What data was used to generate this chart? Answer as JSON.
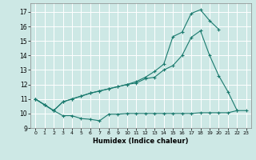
{
  "title": "",
  "xlabel": "Humidex (Indice chaleur)",
  "ylabel": "",
  "bg_color": "#cde8e5",
  "grid_color": "#ffffff",
  "line_color": "#1a7a6e",
  "xlim": [
    -0.5,
    23.5
  ],
  "ylim": [
    9,
    17.6
  ],
  "xticks": [
    0,
    1,
    2,
    3,
    4,
    5,
    6,
    7,
    8,
    9,
    10,
    11,
    12,
    13,
    14,
    15,
    16,
    17,
    18,
    19,
    20,
    21,
    22,
    23
  ],
  "yticks": [
    9,
    10,
    11,
    12,
    13,
    14,
    15,
    16,
    17
  ],
  "series1_x": [
    0,
    1,
    2,
    3,
    4,
    5,
    6,
    7,
    8,
    9,
    10,
    11,
    12,
    13,
    14,
    15,
    16,
    17,
    18,
    19,
    20,
    21,
    22,
    23
  ],
  "series1_y": [
    11.0,
    10.6,
    10.2,
    9.85,
    9.85,
    9.65,
    9.6,
    9.5,
    9.95,
    9.95,
    10.0,
    10.0,
    10.0,
    10.0,
    10.0,
    10.0,
    10.0,
    10.0,
    10.05,
    10.05,
    10.05,
    10.05,
    10.2,
    10.2
  ],
  "series2_x": [
    0,
    1,
    2,
    3,
    4,
    5,
    6,
    7,
    8,
    9,
    10,
    11,
    12,
    13,
    14,
    15,
    16,
    17,
    18,
    19,
    20,
    21,
    22,
    23
  ],
  "series2_y": [
    11.0,
    10.6,
    10.2,
    10.8,
    11.0,
    11.2,
    11.4,
    11.55,
    11.7,
    11.85,
    12.0,
    12.1,
    12.4,
    12.5,
    13.0,
    13.3,
    14.0,
    15.25,
    15.7,
    14.0,
    12.6,
    11.5,
    10.2,
    null
  ],
  "series3_x": [
    0,
    1,
    2,
    3,
    4,
    5,
    6,
    7,
    8,
    9,
    10,
    11,
    12,
    13,
    14,
    15,
    16,
    17,
    18,
    19,
    20,
    21,
    22,
    23
  ],
  "series3_y": [
    11.0,
    10.6,
    10.2,
    10.8,
    11.0,
    11.2,
    11.4,
    11.55,
    11.7,
    11.85,
    12.0,
    12.2,
    12.5,
    12.9,
    13.4,
    15.3,
    15.6,
    16.9,
    17.15,
    16.4,
    15.8,
    null,
    null,
    null
  ]
}
